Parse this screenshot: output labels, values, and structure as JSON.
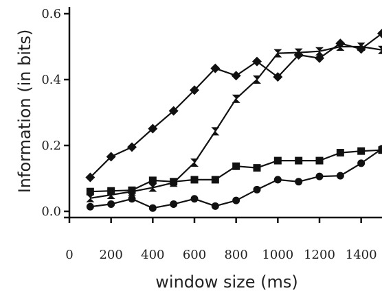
{
  "chart_data": {
    "type": "line",
    "xlabel": "window size (ms)",
    "ylabel": "Information (in bits)",
    "xlim": [
      0,
      1500
    ],
    "ylim": [
      0,
      0.6
    ],
    "x_ticks": [
      0,
      200,
      400,
      600,
      800,
      1000,
      1200,
      1400
    ],
    "y_ticks": [
      0.0,
      0.2,
      0.4,
      0.6
    ],
    "x_tick_labels": [
      "0",
      "200",
      "400",
      "600",
      "800",
      "1000",
      "1200",
      "1400"
    ],
    "y_tick_labels": [
      "0.0",
      "0.2",
      "0.4",
      "0.6"
    ],
    "grid": false,
    "legend": "none",
    "series_color": "#111111",
    "x": [
      100,
      200,
      300,
      400,
      500,
      600,
      700,
      800,
      900,
      1000,
      1100,
      1200,
      1300,
      1400,
      1500
    ],
    "series": [
      {
        "marker": "diamond",
        "values": [
          0.103,
          0.166,
          0.195,
          0.251,
          0.305,
          0.368,
          0.434,
          0.412,
          0.455,
          0.408,
          0.475,
          0.465,
          0.51,
          0.493,
          0.54
        ]
      },
      {
        "marker": "bowtie",
        "values": [
          0.04,
          0.05,
          0.06,
          0.072,
          0.087,
          0.148,
          0.243,
          0.342,
          0.4,
          0.48,
          0.482,
          0.486,
          0.5,
          0.5,
          0.49
        ]
      },
      {
        "marker": "square",
        "values": [
          0.06,
          0.062,
          0.064,
          0.094,
          0.09,
          0.096,
          0.096,
          0.137,
          0.132,
          0.154,
          0.154,
          0.154,
          0.178,
          0.183,
          0.186
        ]
      },
      {
        "marker": "circle",
        "values": [
          0.014,
          0.022,
          0.038,
          0.01,
          0.022,
          0.038,
          0.016,
          0.033,
          0.066,
          0.096,
          0.09,
          0.106,
          0.108,
          0.146,
          0.19
        ]
      }
    ]
  }
}
